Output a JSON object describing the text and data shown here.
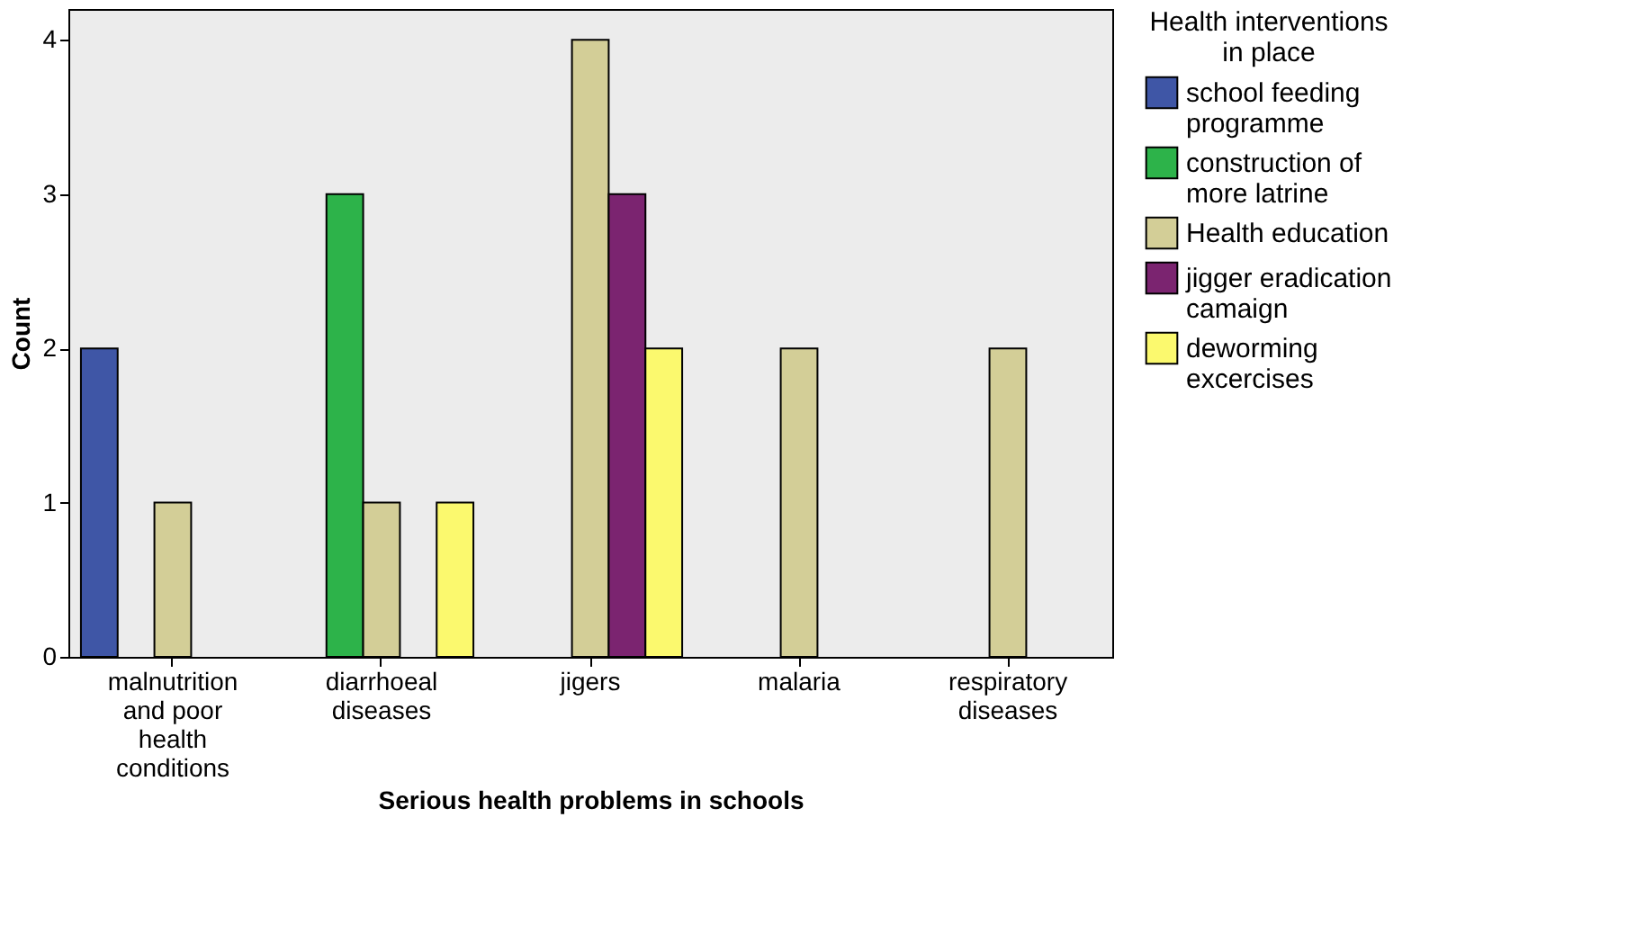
{
  "chart_data": {
    "type": "bar",
    "xlabel": "Serious health problems in schools",
    "ylabel": "Count",
    "legend_title": "Health interventions in place",
    "categories": [
      "malnutrition and poor health conditions",
      "diarrhoeal diseases",
      "jigers",
      "malaria",
      "respiratory diseases"
    ],
    "series": [
      {
        "name": "school feeding programme",
        "color": "#3f56a6",
        "values": [
          2,
          null,
          null,
          null,
          null
        ]
      },
      {
        "name": "construction of more latrine",
        "color": "#2db34a",
        "values": [
          null,
          3,
          null,
          null,
          null
        ]
      },
      {
        "name": "Health education",
        "color": "#d3ce97",
        "values": [
          1,
          1,
          4,
          2,
          2
        ]
      },
      {
        "name": "jigger eradication camaign",
        "color": "#7b2470",
        "values": [
          null,
          null,
          3,
          null,
          null
        ]
      },
      {
        "name": "deworming excercises",
        "color": "#fbf96e",
        "values": [
          null,
          1,
          2,
          null,
          null
        ]
      }
    ],
    "ylim": [
      0,
      4.2
    ],
    "yticks": [
      0,
      1,
      2,
      3,
      4
    ],
    "grid": false,
    "legend": "right"
  }
}
